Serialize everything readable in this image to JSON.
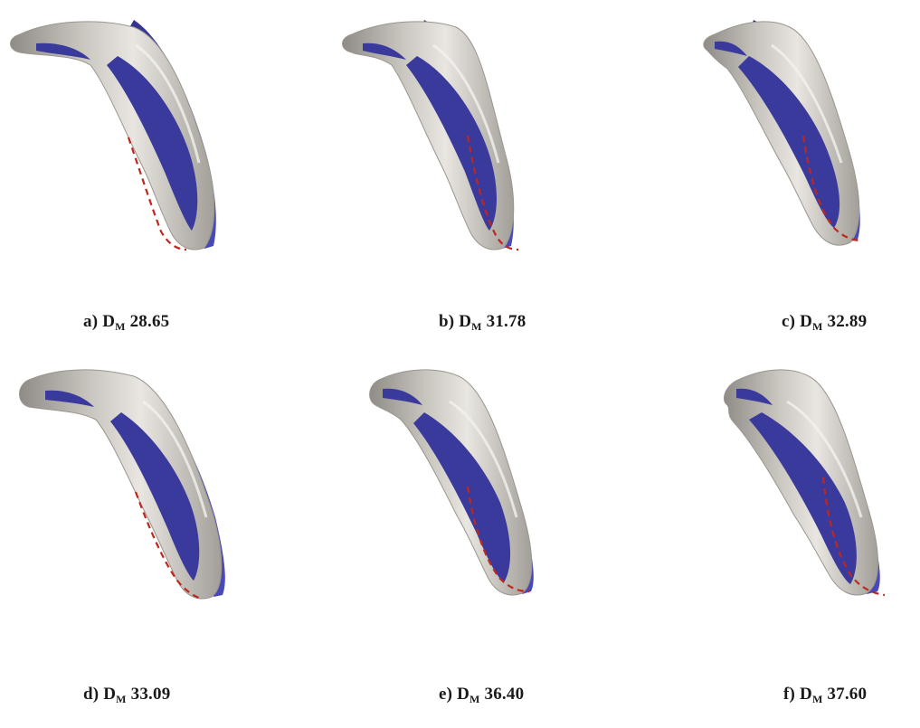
{
  "panels": [
    {
      "letter": "a)",
      "d": "D",
      "sub": "M",
      "value": "28.65"
    },
    {
      "letter": "b)",
      "d": "D",
      "sub": "M",
      "value": "31.78"
    },
    {
      "letter": "c)",
      "d": "D",
      "sub": "M",
      "value": "32.89"
    },
    {
      "letter": "d)",
      "d": "D",
      "sub": "M",
      "value": "33.09"
    },
    {
      "letter": "e)",
      "d": "D",
      "sub": "M",
      "value": "36.40"
    },
    {
      "letter": "f)",
      "d": "D",
      "sub": "M",
      "value": "37.60"
    }
  ],
  "colors": {
    "shell": "#b8b4ae",
    "shell_highlight": "#e6e3de",
    "shell_shadow": "#8f8b86",
    "blue": "#3a3a9c",
    "blue_light": "#5a5ad0",
    "dashed": "#c0271c",
    "text": "#1a1a1a"
  }
}
